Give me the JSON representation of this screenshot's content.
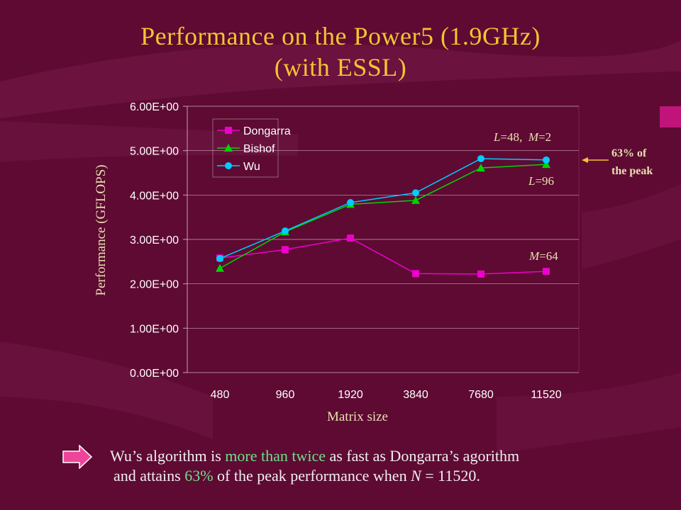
{
  "title_line1": "Performance on the Power5 (1.9GHz)",
  "title_line2": "(with ESSL)",
  "chart_data": {
    "type": "line",
    "categories": [
      "480",
      "960",
      "1920",
      "3840",
      "7680",
      "11520"
    ],
    "ylabel": "Performance (GFLOPS)",
    "xlabel": "Matrix size",
    "ylim": [
      0,
      6
    ],
    "yticks": [
      "0.00E+00",
      "1.00E+00",
      "2.00E+00",
      "3.00E+00",
      "4.00E+00",
      "5.00E+00",
      "6.00E+00"
    ],
    "grid": true,
    "legend_position": "top-left",
    "series": [
      {
        "name": "Dongarra",
        "color": "#ee00cc",
        "marker": "square",
        "values": [
          2.58,
          2.77,
          3.03,
          2.23,
          2.22,
          2.28
        ]
      },
      {
        "name": "Bishof",
        "color": "#00d400",
        "marker": "triangle",
        "values": [
          2.35,
          3.17,
          3.79,
          3.88,
          4.61,
          4.69
        ]
      },
      {
        "name": "Wu",
        "color": "#00ccff",
        "marker": "circle",
        "values": [
          2.57,
          3.19,
          3.83,
          4.05,
          4.82,
          4.79
        ]
      }
    ],
    "annotations": {
      "wu": {
        "l": "L",
        "eq1": "=48",
        "sep": ",  ",
        "m": "M",
        "eq2": "=2"
      },
      "bishof": {
        "l": "L",
        "eq": "=96"
      },
      "dongarra": {
        "m": "M",
        "eq": "=64"
      },
      "peak_line1": "63% of",
      "peak_line2": "the peak"
    }
  },
  "colors": {
    "background": "#5e0a33",
    "title": "#f4c430",
    "highlight": "#6fe08a",
    "arrow_bullet": "#ee4499"
  },
  "bullet_icon": "arrow-right-icon",
  "footer": {
    "p1": "Wu’s algorithm is ",
    "h1": "more than twice",
    "p2": " as fast as Dongarra’s agorithm",
    "p3": "and attains ",
    "h2": "63%",
    "p4": " of the peak performance when ",
    "n": "N",
    "p5": " = 11520."
  }
}
